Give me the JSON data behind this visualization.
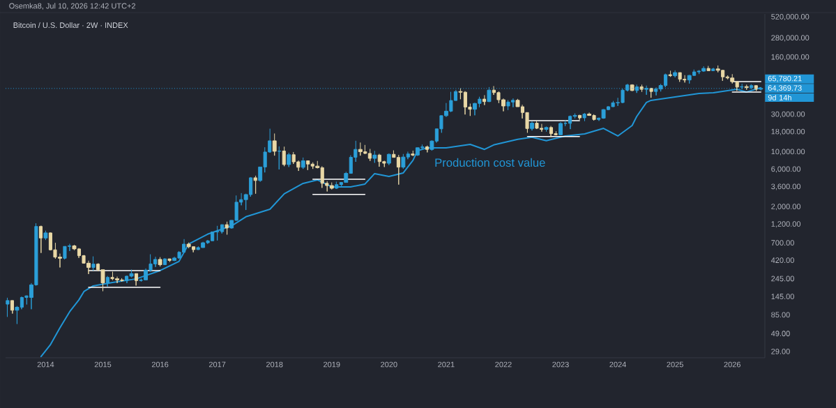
{
  "chart_data": {
    "type": "candlestick",
    "title": "Bitcoin / U.S. Dollar · 2W · INDEX",
    "annotations": [
      "Osemka8, Jul 10, 2026 12:42 UTC+2",
      "65,780.21",
      "9d 14h"
    ],
    "x": [
      "2013-05",
      "2013-06",
      "2013-07",
      "2013-08",
      "2013-09",
      "2013-10",
      "2013-11",
      "2013-12",
      "2014-01",
      "2014-02",
      "2014-03",
      "2014-04",
      "2014-05",
      "2014-06",
      "2014-07",
      "2014-08",
      "2014-09",
      "2014-10",
      "2014-11",
      "2014-12",
      "2015-01",
      "2015-02",
      "2015-03",
      "2015-04",
      "2015-05",
      "2015-06",
      "2015-07",
      "2015-08",
      "2015-09",
      "2015-10",
      "2015-11",
      "2015-12",
      "2016-01",
      "2016-02",
      "2016-03",
      "2016-04",
      "2016-05",
      "2016-06",
      "2016-07",
      "2016-08",
      "2016-09",
      "2016-10",
      "2016-11",
      "2016-12",
      "2017-01",
      "2017-02",
      "2017-03",
      "2017-04",
      "2017-05",
      "2017-06",
      "2017-07",
      "2017-08",
      "2017-09",
      "2017-10",
      "2017-11",
      "2017-12",
      "2018-01",
      "2018-02",
      "2018-03",
      "2018-04",
      "2018-05",
      "2018-06",
      "2018-07",
      "2018-08",
      "2018-09",
      "2018-10",
      "2018-11",
      "2018-12",
      "2019-01",
      "2019-02",
      "2019-03",
      "2019-04",
      "2019-05",
      "2019-06",
      "2019-07",
      "2019-08",
      "2019-09",
      "2019-10",
      "2019-11",
      "2019-12",
      "2020-01",
      "2020-02",
      "2020-03",
      "2020-04",
      "2020-05",
      "2020-06",
      "2020-07",
      "2020-08",
      "2020-09",
      "2020-10",
      "2020-11",
      "2020-12",
      "2021-01",
      "2021-02",
      "2021-03",
      "2021-04",
      "2021-05",
      "2021-06",
      "2021-07",
      "2021-08",
      "2021-09",
      "2021-10",
      "2021-11",
      "2021-12",
      "2022-01",
      "2022-02",
      "2022-03",
      "2022-04",
      "2022-05",
      "2022-06",
      "2022-07",
      "2022-08",
      "2022-09",
      "2022-10",
      "2022-11",
      "2022-12",
      "2023-01",
      "2023-02",
      "2023-03",
      "2023-04",
      "2023-05",
      "2023-06",
      "2023-07",
      "2023-08",
      "2023-09",
      "2023-10",
      "2023-11",
      "2023-12",
      "2024-01",
      "2024-02",
      "2024-03",
      "2024-04",
      "2024-05",
      "2024-06",
      "2024-07",
      "2024-08",
      "2024-09",
      "2024-10",
      "2024-11",
      "2024-12",
      "2025-01",
      "2025-02",
      "2025-03",
      "2025-04",
      "2025-05",
      "2025-06",
      "2025-07",
      "2025-08",
      "2025-09",
      "2025-10",
      "2025-11",
      "2025-12",
      "2026-01",
      "2026-02",
      "2026-03",
      "2026-04",
      "2026-05",
      "2026-06",
      "2026-07"
    ],
    "ohlc": [
      [
        116,
        140,
        80,
        129
      ],
      [
        129,
        130,
        88,
        97
      ],
      [
        97,
        110,
        65,
        106
      ],
      [
        106,
        145,
        100,
        141
      ],
      [
        141,
        150,
        115,
        148
      ],
      [
        141,
        215,
        100,
        204
      ],
      [
        204,
        1240,
        200,
        1130
      ],
      [
        1130,
        1160,
        520,
        805
      ],
      [
        805,
        1000,
        760,
        935
      ],
      [
        935,
        950,
        560,
        570
      ],
      [
        570,
        700,
        440,
        460
      ],
      [
        460,
        510,
        340,
        445
      ],
      [
        445,
        630,
        430,
        630
      ],
      [
        630,
        680,
        550,
        640
      ],
      [
        640,
        660,
        565,
        585
      ],
      [
        585,
        600,
        450,
        480
      ],
      [
        480,
        490,
        380,
        385
      ],
      [
        385,
        415,
        280,
        340
      ],
      [
        340,
        470,
        310,
        375
      ],
      [
        375,
        385,
        305,
        318
      ],
      [
        318,
        320,
        170,
        216
      ],
      [
        216,
        265,
        195,
        254
      ],
      [
        254,
        300,
        235,
        244
      ],
      [
        244,
        260,
        215,
        236
      ],
      [
        236,
        248,
        225,
        230
      ],
      [
        230,
        268,
        215,
        263
      ],
      [
        263,
        320,
        255,
        284
      ],
      [
        284,
        285,
        200,
        231
      ],
      [
        231,
        245,
        225,
        236
      ],
      [
        236,
        330,
        235,
        314
      ],
      [
        314,
        500,
        300,
        377
      ],
      [
        377,
        465,
        345,
        430
      ],
      [
        430,
        460,
        350,
        368
      ],
      [
        368,
        445,
        365,
        437
      ],
      [
        437,
        440,
        400,
        416
      ],
      [
        416,
        465,
        410,
        448
      ],
      [
        448,
        550,
        440,
        531
      ],
      [
        531,
        780,
        530,
        673
      ],
      [
        673,
        705,
        600,
        624
      ],
      [
        624,
        630,
        530,
        573
      ],
      [
        573,
        630,
        570,
        609
      ],
      [
        609,
        720,
        605,
        700
      ],
      [
        700,
        760,
        680,
        742
      ],
      [
        742,
        970,
        740,
        964
      ],
      [
        964,
        1150,
        750,
        970
      ],
      [
        970,
        1200,
        920,
        1190
      ],
      [
        1190,
        1300,
        890,
        1080
      ],
      [
        1080,
        1360,
        1060,
        1350
      ],
      [
        1350,
        2800,
        1340,
        2300
      ],
      [
        2300,
        3000,
        2100,
        2480
      ],
      [
        2480,
        2950,
        1830,
        2875
      ],
      [
        2875,
        4800,
        2700,
        4700
      ],
      [
        4700,
        5000,
        2950,
        4340
      ],
      [
        4340,
        6450,
        4200,
        6450
      ],
      [
        6450,
        11500,
        5500,
        10000
      ],
      [
        10000,
        19800,
        9800,
        13880
      ],
      [
        13880,
        17200,
        9000,
        10220
      ],
      [
        10220,
        11800,
        6000,
        10300
      ],
      [
        10300,
        11700,
        6600,
        6930
      ],
      [
        6930,
        9800,
        6450,
        9240
      ],
      [
        9240,
        10000,
        7050,
        7500
      ],
      [
        7500,
        7800,
        5750,
        6390
      ],
      [
        6390,
        8500,
        6100,
        7730
      ],
      [
        7730,
        7760,
        5900,
        7020
      ],
      [
        7020,
        7400,
        6100,
        6620
      ],
      [
        6620,
        7700,
        6200,
        6320
      ],
      [
        6320,
        6600,
        3500,
        4000
      ],
      [
        4000,
        4250,
        3150,
        3740
      ],
      [
        3740,
        4100,
        3350,
        3460
      ],
      [
        3460,
        4200,
        3400,
        3850
      ],
      [
        3850,
        4150,
        3700,
        4100
      ],
      [
        4100,
        5600,
        4080,
        5350
      ],
      [
        5350,
        9100,
        5300,
        8570
      ],
      [
        8570,
        13900,
        7500,
        10800
      ],
      [
        10800,
        13200,
        9000,
        10080
      ],
      [
        10080,
        12300,
        9450,
        9600
      ],
      [
        9600,
        10950,
        7700,
        8300
      ],
      [
        8300,
        10350,
        7300,
        9150
      ],
      [
        9150,
        9500,
        6500,
        7550
      ],
      [
        7550,
        7750,
        6450,
        7200
      ],
      [
        7200,
        9600,
        6850,
        9350
      ],
      [
        9350,
        10500,
        8500,
        8540
      ],
      [
        8540,
        9200,
        3850,
        6420
      ],
      [
        6420,
        9450,
        6150,
        8630
      ],
      [
        8630,
        10100,
        8100,
        9450
      ],
      [
        9450,
        10400,
        8900,
        9140
      ],
      [
        9140,
        11450,
        8950,
        11330
      ],
      [
        11330,
        12450,
        10950,
        11650
      ],
      [
        11650,
        12100,
        9900,
        10780
      ],
      [
        10780,
        14100,
        10400,
        13780
      ],
      [
        13780,
        19800,
        13200,
        19700
      ],
      [
        19700,
        29300,
        17600,
        28990
      ],
      [
        28990,
        42000,
        28100,
        33100
      ],
      [
        33100,
        58350,
        32300,
        45200
      ],
      [
        45200,
        61800,
        45000,
        58800
      ],
      [
        58800,
        64800,
        47000,
        57700
      ],
      [
        57700,
        59500,
        30000,
        37300
      ],
      [
        37300,
        41300,
        28800,
        35000
      ],
      [
        35000,
        42400,
        29300,
        41500
      ],
      [
        41500,
        50500,
        37300,
        47100
      ],
      [
        47100,
        52900,
        39600,
        43800
      ],
      [
        43800,
        67000,
        43300,
        61300
      ],
      [
        61300,
        69000,
        53300,
        57000
      ],
      [
        57000,
        59000,
        42000,
        46200
      ],
      [
        46200,
        48000,
        33000,
        38500
      ],
      [
        38500,
        45800,
        34300,
        43200
      ],
      [
        43200,
        48200,
        37200,
        45500
      ],
      [
        45500,
        47400,
        37700,
        37700
      ],
      [
        37700,
        40000,
        26700,
        31800
      ],
      [
        31800,
        31900,
        17600,
        19900
      ],
      [
        19900,
        24600,
        18800,
        23300
      ],
      [
        23300,
        25200,
        19600,
        20050
      ],
      [
        20050,
        22800,
        18150,
        19400
      ],
      [
        19400,
        21100,
        18200,
        20500
      ],
      [
        20500,
        21500,
        15500,
        17150
      ],
      [
        17150,
        18400,
        16300,
        16550
      ],
      [
        16550,
        23950,
        16500,
        23100
      ],
      [
        23100,
        25250,
        21400,
        23150
      ],
      [
        23150,
        29200,
        19550,
        28450
      ],
      [
        28450,
        31000,
        26900,
        29250
      ],
      [
        29250,
        29800,
        25800,
        27200
      ],
      [
        27200,
        31400,
        24800,
        30450
      ],
      [
        30450,
        31800,
        28850,
        29200
      ],
      [
        29200,
        30200,
        25200,
        25950
      ],
      [
        25950,
        27500,
        24900,
        26970
      ],
      [
        26970,
        35200,
        26550,
        34650
      ],
      [
        34650,
        38400,
        34100,
        37700
      ],
      [
        37700,
        44700,
        37600,
        42300
      ],
      [
        42300,
        48900,
        38600,
        42600
      ],
      [
        42600,
        64000,
        41900,
        61200
      ],
      [
        61200,
        73800,
        59100,
        71300
      ],
      [
        71300,
        72800,
        59600,
        60600
      ],
      [
        60600,
        72000,
        56500,
        67500
      ],
      [
        67500,
        72000,
        58400,
        62700
      ],
      [
        62700,
        70000,
        53500,
        64600
      ],
      [
        64600,
        65600,
        49000,
        58900
      ],
      [
        58900,
        66500,
        52600,
        63300
      ],
      [
        63300,
        73600,
        58900,
        70200
      ],
      [
        70200,
        99600,
        66800,
        96400
      ],
      [
        96400,
        108300,
        90500,
        93400
      ],
      [
        93400,
        109400,
        89200,
        102400
      ],
      [
        102400,
        102500,
        78200,
        84300
      ],
      [
        84300,
        95000,
        76600,
        82500
      ],
      [
        82500,
        95800,
        74400,
        94200
      ],
      [
        94200,
        112000,
        93300,
        104600
      ],
      [
        104600,
        110500,
        98200,
        107100
      ],
      [
        107100,
        123200,
        105100,
        115700
      ],
      [
        115700,
        124500,
        108000,
        108200
      ],
      [
        108200,
        117900,
        107300,
        114000
      ],
      [
        114000,
        126200,
        103500,
        109500
      ],
      [
        109500,
        111000,
        80500,
        90400
      ],
      [
        90400,
        94600,
        84400,
        87500
      ],
      [
        87500,
        97900,
        74600,
        78600
      ],
      [
        78600,
        79300,
        60000,
        67000
      ],
      [
        67000,
        74000,
        63000,
        68000
      ],
      [
        68000,
        72000,
        62000,
        66000
      ],
      [
        66000,
        73000,
        63000,
        70000
      ],
      [
        70000,
        71000,
        60000,
        63000
      ],
      [
        63000,
        66500,
        61000,
        64369.73
      ]
    ],
    "colors": [
      "#2b9fd8",
      "#e9d8a6",
      "#2b9fd8",
      "#2b9fd8",
      "#2b9fd8",
      "#2b9fd8",
      "#2b9fd8",
      "#e9d8a6",
      "#2b9fd8",
      "#e9d8a6",
      "#e9d8a6",
      "#e9d8a6",
      "#2b9fd8",
      "#2b9fd8",
      "#e9d8a6",
      "#e9d8a6",
      "#e9d8a6",
      "#e9d8a6",
      "#2b9fd8",
      "#e9d8a6",
      "#e9d8a6",
      "#2b9fd8",
      "#e9d8a6",
      "#e9d8a6",
      "#e9d8a6",
      "#2b9fd8",
      "#2b9fd8",
      "#e9d8a6",
      "#2b9fd8",
      "#2b9fd8",
      "#2b9fd8",
      "#2b9fd8",
      "#e9d8a6",
      "#2b9fd8",
      "#e9d8a6",
      "#2b9fd8",
      "#2b9fd8",
      "#2b9fd8",
      "#e9d8a6",
      "#e9d8a6",
      "#2b9fd8",
      "#2b9fd8",
      "#2b9fd8",
      "#2b9fd8",
      "#2b9fd8",
      "#2b9fd8",
      "#e9d8a6",
      "#2b9fd8",
      "#2b9fd8",
      "#2b9fd8",
      "#2b9fd8",
      "#2b9fd8",
      "#e9d8a6",
      "#2b9fd8",
      "#2b9fd8",
      "#2b9fd8",
      "#e9d8a6",
      "#2b9fd8",
      "#e9d8a6",
      "#2b9fd8",
      "#e9d8a6",
      "#e9d8a6",
      "#2b9fd8",
      "#e9d8a6",
      "#e9d8a6",
      "#e9d8a6",
      "#e9d8a6",
      "#e9d8a6",
      "#e9d8a6",
      "#2b9fd8",
      "#2b9fd8",
      "#2b9fd8",
      "#2b9fd8",
      "#2b9fd8",
      "#e9d8a6",
      "#e9d8a6",
      "#e9d8a6",
      "#2b9fd8",
      "#e9d8a6",
      "#e9d8a6",
      "#2b9fd8",
      "#e9d8a6",
      "#e9d8a6",
      "#2b9fd8",
      "#2b9fd8",
      "#e9d8a6",
      "#2b9fd8",
      "#2b9fd8",
      "#e9d8a6",
      "#2b9fd8",
      "#2b9fd8",
      "#2b9fd8",
      "#2b9fd8",
      "#2b9fd8",
      "#2b9fd8",
      "#e9d8a6",
      "#e9d8a6",
      "#e9d8a6",
      "#2b9fd8",
      "#2b9fd8",
      "#e9d8a6",
      "#2b9fd8",
      "#e9d8a6",
      "#e9d8a6",
      "#e9d8a6",
      "#2b9fd8",
      "#2b9fd8",
      "#e9d8a6",
      "#e9d8a6",
      "#e9d8a6",
      "#2b9fd8",
      "#e9d8a6",
      "#e9d8a6",
      "#2b9fd8",
      "#e9d8a6",
      "#e9d8a6",
      "#2b9fd8",
      "#2b9fd8",
      "#2b9fd8",
      "#2b9fd8",
      "#e9d8a6",
      "#2b9fd8",
      "#e9d8a6",
      "#e9d8a6",
      "#2b9fd8",
      "#2b9fd8",
      "#2b9fd8",
      "#2b9fd8",
      "#2b9fd8",
      "#2b9fd8",
      "#2b9fd8",
      "#e9d8a6",
      "#2b9fd8",
      "#e9d8a6",
      "#2b9fd8",
      "#e9d8a6",
      "#2b9fd8",
      "#2b9fd8",
      "#2b9fd8",
      "#e9d8a6",
      "#2b9fd8",
      "#e9d8a6",
      "#e9d8a6",
      "#2b9fd8",
      "#2b9fd8",
      "#2b9fd8",
      "#2b9fd8",
      "#e9d8a6",
      "#2b9fd8",
      "#e9d8a6",
      "#e9d8a6",
      "#e9d8a6",
      "#e9d8a6",
      "#e9d8a6",
      "#2b9fd8",
      "#e9d8a6",
      "#2b9fd8",
      "#e9d8a6",
      "#2b9fd8"
    ],
    "series": [
      {
        "name": "Production cost value",
        "type": "line",
        "color": "#2196d6",
        "x": [
          "2013-12",
          "2014-02",
          "2014-04",
          "2014-06",
          "2014-08",
          "2014-09",
          "2014-11",
          "2015-03",
          "2015-08",
          "2016-01",
          "2016-05",
          "2016-07",
          "2016-11",
          "2017-04",
          "2017-07",
          "2017-12",
          "2018-03",
          "2018-07",
          "2018-10",
          "2019-01",
          "2019-05",
          "2019-08",
          "2019-10",
          "2020-01",
          "2020-04",
          "2020-06",
          "2020-07",
          "2020-09",
          "2021-01",
          "2021-06",
          "2021-09",
          "2021-11",
          "2022-04",
          "2022-07",
          "2022-10",
          "2023-02",
          "2023-06",
          "2023-10",
          "2024-01",
          "2024-04",
          "2024-05",
          "2024-07",
          "2024-08",
          "2025-01",
          "2025-06",
          "2025-09",
          "2026-02",
          "2026-04",
          "2026-07"
        ],
        "values": [
          25,
          35,
          58,
          93,
          131,
          168,
          198,
          219,
          243,
          310,
          405,
          675,
          900,
          1150,
          1500,
          1870,
          2940,
          3990,
          4420,
          3600,
          3600,
          3910,
          5310,
          4890,
          5420,
          7840,
          10400,
          11300,
          11300,
          12500,
          10800,
          12300,
          14500,
          15400,
          13900,
          16000,
          17000,
          20000,
          16000,
          21700,
          28300,
          42700,
          45400,
          50300,
          55600,
          56800,
          62900,
          58000,
          65780.21
        ]
      },
      {
        "type": "line",
        "color": "#ffffff",
        "x": [
          "2014-10",
          "2016-01"
        ],
        "values": [
          310,
          310
        ]
      },
      {
        "type": "line",
        "color": "#ffffff",
        "x": [
          "2014-10",
          "2016-01"
        ],
        "values": [
          190,
          190
        ]
      },
      {
        "type": "line",
        "color": "#ffffff",
        "x": [
          "2018-09",
          "2019-08"
        ],
        "values": [
          4510,
          4510
        ]
      },
      {
        "type": "line",
        "color": "#ffffff",
        "x": [
          "2018-09",
          "2019-08"
        ],
        "values": [
          2880,
          2880
        ]
      },
      {
        "type": "line",
        "color": "#ffffff",
        "x": [
          "2022-06",
          "2023-05"
        ],
        "values": [
          25100,
          25100
        ]
      },
      {
        "type": "line",
        "color": "#ffffff",
        "x": [
          "2022-06",
          "2023-05"
        ],
        "values": [
          15700,
          15700
        ]
      },
      {
        "type": "line",
        "color": "#ffffff",
        "x": [
          "2026-01",
          "2026-07"
        ],
        "values": [
          78700,
          78700
        ]
      },
      {
        "type": "line",
        "color": "#ffffff",
        "x": [
          "2026-01",
          "2026-07"
        ],
        "values": [
          58000,
          58000
        ]
      }
    ],
    "ref_lines": [
      {
        "axis": "y",
        "value": 64369.73,
        "label": "64,369.73",
        "color": "#2196d6",
        "line_style": "dotted"
      }
    ],
    "log": "y",
    "xlim": [
      "2013-04-18",
      "2026-07-28"
    ],
    "xticks": [
      "2014",
      "2015",
      "2016",
      "2017",
      "2018",
      "2019",
      "2020",
      "2021",
      "2022",
      "2023",
      "2024",
      "2025",
      "2026"
    ],
    "ylim": [
      24.1,
      571000
    ],
    "yticks": [
      {
        "value": 29,
        "label": "29.00"
      },
      {
        "value": 49,
        "label": "49.00"
      },
      {
        "value": 85,
        "label": "85.00"
      },
      {
        "value": 145,
        "label": "145.00"
      },
      {
        "value": 245,
        "label": "245.00"
      },
      {
        "value": 420,
        "label": "420.00"
      },
      {
        "value": 700,
        "label": "700.00"
      },
      {
        "value": 1200,
        "label": "1,200.00"
      },
      {
        "value": 2000,
        "label": "2,000.00"
      },
      {
        "value": 3600,
        "label": "3,600.00"
      },
      {
        "value": 6000,
        "label": "6,000.00"
      },
      {
        "value": 10000,
        "label": "10,000.00"
      },
      {
        "value": 18000,
        "label": "18,000.00"
      },
      {
        "value": 30000,
        "label": "30,000.00"
      },
      {
        "value": 160000,
        "label": "160,000.00"
      },
      {
        "value": 280000,
        "label": "280,000.00"
      },
      {
        "value": 520000,
        "label": "520,000.00"
      }
    ]
  }
}
